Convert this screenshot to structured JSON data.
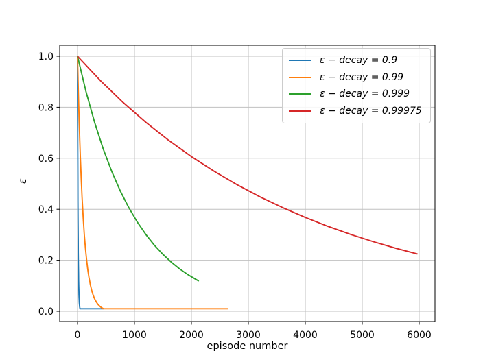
{
  "colors": {
    "background": "#ffffff",
    "grid": "#c0c0c0",
    "spine": "#000000",
    "text": "#000000",
    "legend_border": "#cccccc"
  },
  "chart_data": {
    "type": "line",
    "title": "",
    "xlabel": "episode number",
    "ylabel": "ε",
    "xlim": [
      -313,
      6277
    ],
    "ylim": [
      -0.0403,
      1.043
    ],
    "grid": true,
    "legend_position": "upper right",
    "epsilon_floor": 0.01,
    "xticks": [
      0,
      1000,
      2000,
      3000,
      4000,
      5000,
      6000
    ],
    "xtick_labels": [
      "0",
      "1000",
      "2000",
      "3000",
      "4000",
      "5000",
      "6000"
    ],
    "yticks": [
      0.0,
      0.2,
      0.4,
      0.6,
      0.8,
      1.0
    ],
    "ytick_labels": [
      "0.0",
      "0.2",
      "0.4",
      "0.6",
      "0.8",
      "1.0"
    ],
    "series": [
      {
        "name": "decay-0.9",
        "label": "ε −  decay = 0.9",
        "color": "#1f77b4",
        "decay": 0.9,
        "points": [
          [
            0,
            1
          ],
          [
            2,
            0.81
          ],
          [
            4,
            0.6561
          ],
          [
            6,
            0.5314
          ],
          [
            8,
            0.4305
          ],
          [
            10,
            0.3487
          ],
          [
            12,
            0.2824
          ],
          [
            14,
            0.2288
          ],
          [
            16,
            0.1853
          ],
          [
            18,
            0.1501
          ],
          [
            20,
            0.1216
          ],
          [
            22,
            0.0985
          ],
          [
            24,
            0.0798
          ],
          [
            26,
            0.0646
          ],
          [
            28,
            0.0523
          ],
          [
            30,
            0.0424
          ],
          [
            32,
            0.0343
          ],
          [
            34,
            0.0278
          ],
          [
            36,
            0.0225
          ],
          [
            38,
            0.0182
          ],
          [
            40,
            0.0148
          ],
          [
            42,
            0.012
          ],
          [
            44,
            0.01
          ],
          [
            470,
            0.01
          ]
        ]
      },
      {
        "name": "decay-0.99",
        "label": "ε −  decay = 0.99",
        "color": "#ff7f0e",
        "decay": 0.99,
        "points": [
          [
            0,
            1
          ],
          [
            10,
            0.9044
          ],
          [
            20,
            0.8179
          ],
          [
            30,
            0.7397
          ],
          [
            40,
            0.669
          ],
          [
            50,
            0.605
          ],
          [
            65,
            0.5204
          ],
          [
            80,
            0.4475
          ],
          [
            100,
            0.366
          ],
          [
            120,
            0.2994
          ],
          [
            140,
            0.245
          ],
          [
            160,
            0.2004
          ],
          [
            180,
            0.1639
          ],
          [
            200,
            0.134
          ],
          [
            225,
            0.1042
          ],
          [
            250,
            0.0811
          ],
          [
            275,
            0.0631
          ],
          [
            300,
            0.049
          ],
          [
            330,
            0.0362
          ],
          [
            360,
            0.0267
          ],
          [
            390,
            0.0198
          ],
          [
            420,
            0.0146
          ],
          [
            450,
            0.0109
          ],
          [
            460,
            0.01
          ],
          [
            2650,
            0.01
          ]
        ]
      },
      {
        "name": "decay-0.999",
        "label": "ε −  decay = 0.999",
        "color": "#2ca02c",
        "decay": 0.999,
        "points": [
          [
            0,
            1
          ],
          [
            150,
            0.8607
          ],
          [
            300,
            0.7408
          ],
          [
            450,
            0.6376
          ],
          [
            600,
            0.5488
          ],
          [
            750,
            0.4723
          ],
          [
            900,
            0.4065
          ],
          [
            1050,
            0.3499
          ],
          [
            1200,
            0.3011
          ],
          [
            1350,
            0.2592
          ],
          [
            1500,
            0.2231
          ],
          [
            1650,
            0.192
          ],
          [
            1800,
            0.1652
          ],
          [
            1950,
            0.1422
          ],
          [
            2100,
            0.1224
          ],
          [
            2130,
            0.1187
          ]
        ]
      },
      {
        "name": "decay-0.99975",
        "label": "ε −  decay = 0.99975",
        "color": "#d62728",
        "decay": 0.99975,
        "points": [
          [
            0,
            1
          ],
          [
            400,
            0.9048
          ],
          [
            800,
            0.8187
          ],
          [
            1200,
            0.7408
          ],
          [
            1600,
            0.6703
          ],
          [
            2000,
            0.6065
          ],
          [
            2400,
            0.5488
          ],
          [
            2800,
            0.4966
          ],
          [
            3200,
            0.4493
          ],
          [
            3600,
            0.4066
          ],
          [
            4000,
            0.3679
          ],
          [
            4400,
            0.3329
          ],
          [
            4800,
            0.3012
          ],
          [
            5200,
            0.2725
          ],
          [
            5600,
            0.2466
          ],
          [
            5970,
            0.2248
          ]
        ]
      }
    ]
  }
}
